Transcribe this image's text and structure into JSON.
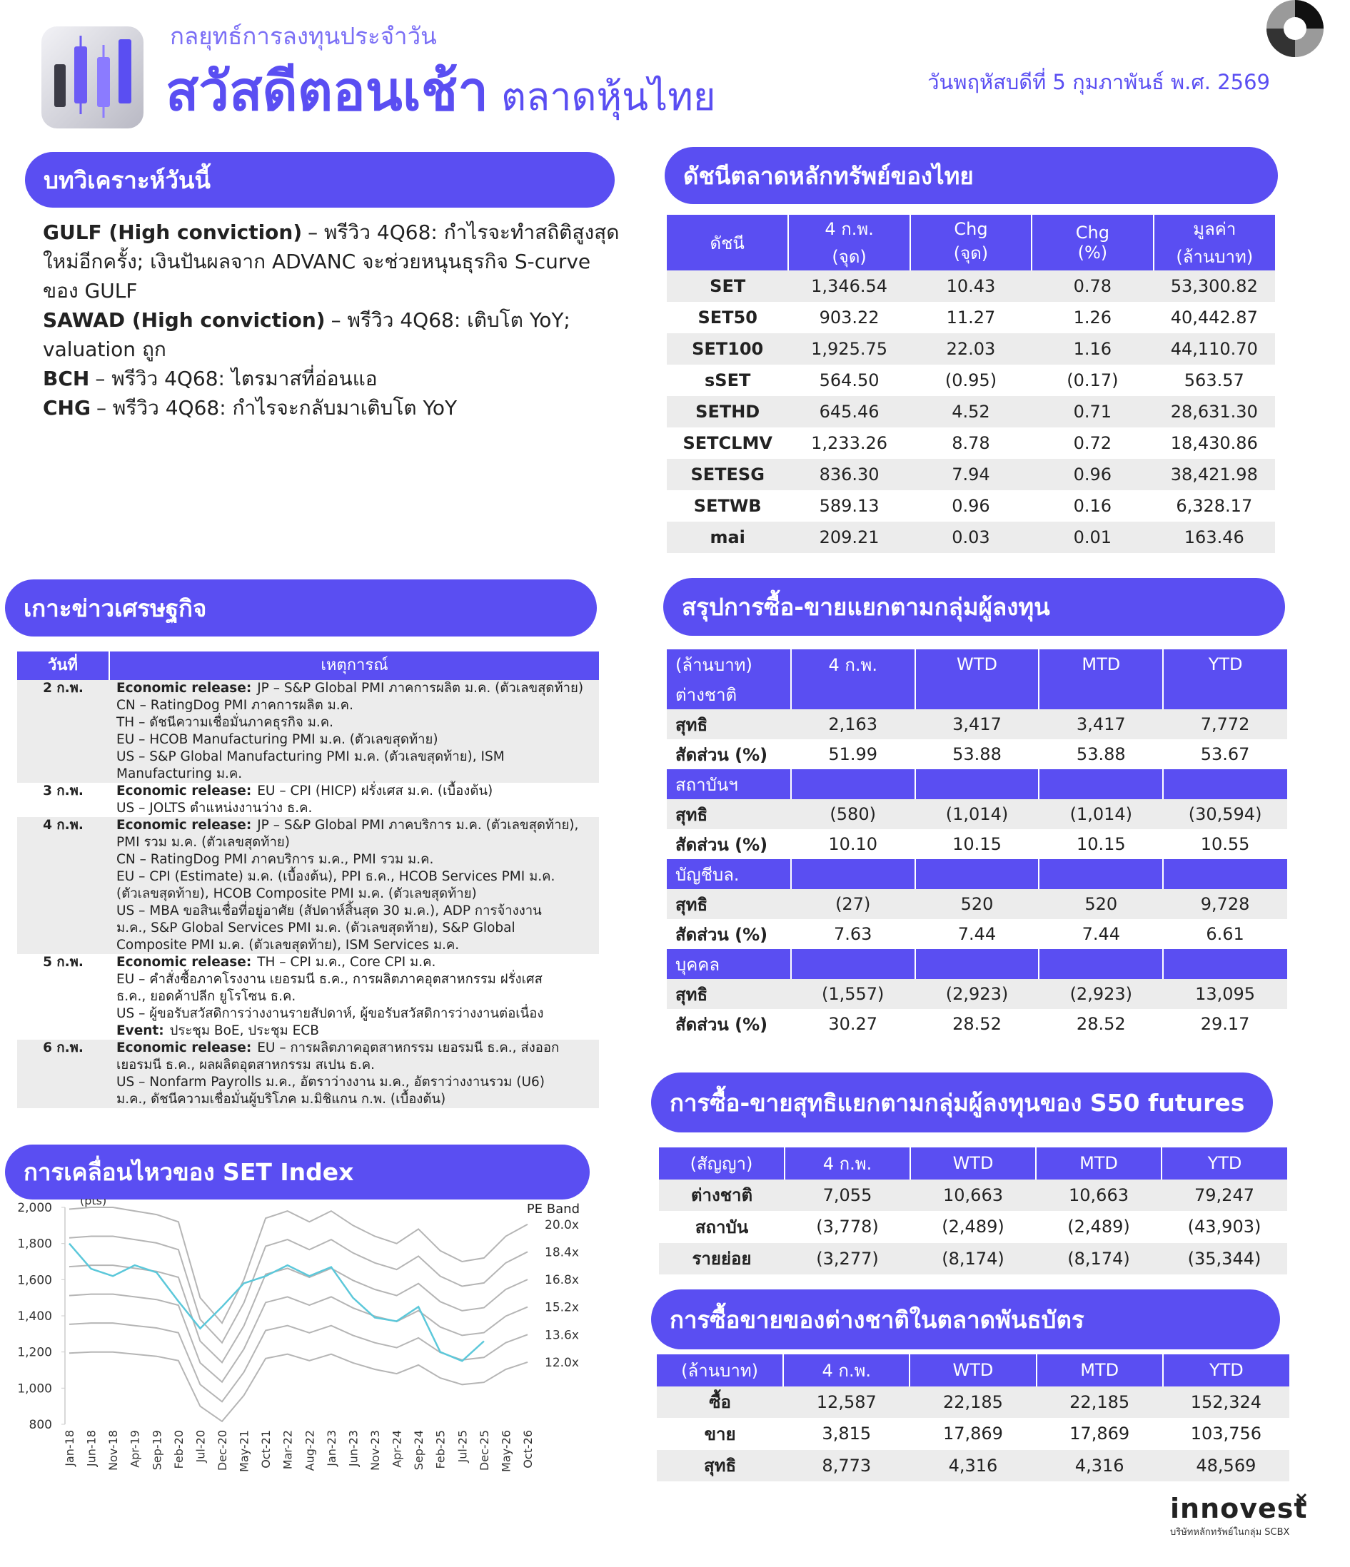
{
  "header": {
    "subtitle": "กลยุทธ์การลงทุนประจำวัน",
    "title": "สวัสดีตอนเช้า",
    "title_suffix": "ตลาดหุ้นไทย",
    "date": "วันพฤหัสบดีที่ 5 กุมภาพันธ์ พ.ศ. 2569"
  },
  "analysis": {
    "title": "บทวิเคราะห์วันนี้",
    "lines": [
      {
        "bold": "GULF (High conviction)",
        "text": "– พรีวิว 4Q68: กำไรจะทำสถิติสูงสุด"
      },
      "ใหม่อีกครั้ง; เงินปันผลจาก ADVANC จะช่วยหนุนธุรกิจ S-curve",
      "ของ GULF",
      {
        "bold": "SAWAD (High conviction)",
        "text": "– พรีวิว 4Q68: เติบโต YoY;"
      },
      "valuation ถูก",
      {
        "bold": "BCH",
        "text": "– พรีวิว 4Q68: ไตรมาสที่อ่อนแอ"
      },
      {
        "bold": "CHG",
        "text": "– พรีวิว 4Q68: กำไรจะกลับมาเติบโต YoY"
      }
    ]
  },
  "index_table": {
    "title": "ดัชนีตลาดหลักทรัพย์ของไทย",
    "header": [
      [
        "ดัชนี"
      ],
      [
        "4 ก.พ.",
        "(จุด)"
      ],
      [
        "Chg",
        "(จุด)"
      ],
      [
        "Chg",
        "(%)"
      ],
      [
        "มูลค่า",
        "(ล้านบาท)"
      ]
    ],
    "rows": [
      [
        "SET",
        "1,346.54",
        "10.43",
        "0.78",
        "53,300.82"
      ],
      [
        "SET50",
        "903.22",
        "11.27",
        "1.26",
        "40,442.87"
      ],
      [
        "SET100",
        "1,925.75",
        "22.03",
        "1.16",
        "44,110.70"
      ],
      [
        "sSET",
        "564.50",
        "(0.95)",
        "(0.17)",
        "563.57"
      ],
      [
        "SETHD",
        "645.46",
        "4.52",
        "0.71",
        "28,631.30"
      ],
      [
        "SETCLMV",
        "1,233.26",
        "8.78",
        "0.72",
        "18,430.86"
      ],
      [
        "SETESG",
        "836.30",
        "7.94",
        "0.96",
        "38,421.98"
      ],
      [
        "SETWB",
        "589.13",
        "0.96",
        "0.16",
        "6,328.17"
      ],
      [
        "mai",
        "209.21",
        "0.03",
        "0.01",
        "163.46"
      ]
    ]
  },
  "news": {
    "title": "เกาะข่าวเศรษฐกิจ",
    "header": [
      "วันที่",
      "เหตุการณ์"
    ],
    "rows": [
      {
        "date": "2 ก.พ.",
        "lines": [
          {
            "bold": "Economic release:",
            "text": "JP – S&P Global PMI ภาคการผลิต ม.ค. (ตัวเลขสุดท้าย)"
          },
          "CN – RatingDog PMI ภาคการผลิต ม.ค.",
          "TH – ดัชนีความเชื่อมั่นภาคธุรกิจ ม.ค.",
          "EU – HCOB Manufacturing PMI ม.ค. (ตัวเลขสุดท้าย)",
          "US – S&P Global Manufacturing PMI ม.ค. (ตัวเลขสุดท้าย), ISM",
          "Manufacturing ม.ค."
        ]
      },
      {
        "date": "3 ก.พ.",
        "lines": [
          {
            "bold": "Economic release:",
            "text": "EU – CPI (HICP) ฝรั่งเศส ม.ค. (เบื้องต้น)"
          },
          "US – JOLTS ตำแหน่งงานว่าง ธ.ค."
        ]
      },
      {
        "date": "4 ก.พ.",
        "lines": [
          {
            "bold": "Economic release:",
            "text": "JP – S&P Global PMI ภาคบริการ ม.ค. (ตัวเลขสุดท้าย),"
          },
          "PMI รวม ม.ค. (ตัวเลขสุดท้าย)",
          "CN – RatingDog PMI ภาคบริการ ม.ค., PMI รวม ม.ค.",
          "EU – CPI (Estimate) ม.ค. (เบื้องต้น), PPI ธ.ค., HCOB Services PMI ม.ค.",
          "(ตัวเลขสุดท้าย), HCOB Composite PMI ม.ค. (ตัวเลขสุดท้าย)",
          "US – MBA ขอสินเชื่อที่อยู่อาศัย (สัปดาห์สิ้นสุด 30 ม.ค.), ADP การจ้างงาน",
          "ม.ค., S&P Global Services PMI ม.ค. (ตัวเลขสุดท้าย), S&P Global",
          "Composite PMI ม.ค. (ตัวเลขสุดท้าย), ISM Services ม.ค."
        ]
      },
      {
        "date": "5 ก.พ.",
        "lines": [
          {
            "bold": "Economic release:",
            "text": "TH – CPI ม.ค., Core CPI ม.ค."
          },
          "EU – คำสั่งซื้อภาคโรงงาน เยอรมนี ธ.ค., การผลิตภาคอุตสาหกรรม ฝรั่งเศส",
          "ธ.ค., ยอดค้าปลีก ยูโรโซน ธ.ค.",
          "US – ผู้ขอรับสวัสดิการว่างงานรายสัปดาห์, ผู้ขอรับสวัสดิการว่างงานต่อเนื่อง",
          {
            "bold": "Event:",
            "text": "ประชุม BoE, ประชุม ECB"
          }
        ]
      },
      {
        "date": "6 ก.พ.",
        "lines": [
          {
            "bold": "Economic release:",
            "text": "EU – การผลิตภาคอุตสาหกรรม เยอรมนี ธ.ค., ส่งออก"
          },
          "เยอรมนี ธ.ค., ผลผลิตอุตสาหกรรม สเปน ธ.ค.",
          "US – Nonfarm Payrolls ม.ค., อัตราว่างงาน ม.ค., อัตราว่างงานรวม (U6)",
          "ม.ค., ดัชนีความเชื่อมั่นผู้บริโภค ม.มิชิแกน ก.พ. (เบื้องต้น)"
        ]
      }
    ]
  },
  "chart_data": {
    "type": "line",
    "title": "การเคลื่อนไหวของ SET Index",
    "y_label": "(pts)",
    "band_label": "PE Band",
    "categories": [
      "Jan-18",
      "Jun-18",
      "Nov-18",
      "Apr-19",
      "Sep-19",
      "Feb-20",
      "Jul-20",
      "Dec-20",
      "May-21",
      "Oct-21",
      "Mar-22",
      "Aug-22",
      "Jan-23",
      "Jun-23",
      "Nov-23",
      "Apr-24",
      "Sep-24",
      "Feb-25",
      "Jul-25",
      "Dec-25",
      "May-26",
      "Oct-26"
    ],
    "ylim": [
      800,
      2000
    ],
    "yticks": [
      800,
      {
        "value": 1000,
        "label": "1,000"
      },
      {
        "value": 1200,
        "label": "1,200"
      },
      {
        "value": 1400,
        "label": "1,400"
      },
      {
        "value": 1600,
        "label": "1,600"
      },
      {
        "value": 1800,
        "label": "1,800"
      },
      {
        "value": 2000,
        "label": "2,000"
      }
    ],
    "series": [
      {
        "name": "20.0x",
        "color": "#b5b5b5",
        "values": [
          1990,
          2000,
          2000,
          1980,
          1960,
          1920,
          1500,
          1360,
          1600,
          1940,
          1980,
          1920,
          1980,
          1900,
          1840,
          1800,
          1880,
          1760,
          1700,
          1720,
          1840,
          1906
        ]
      },
      {
        "name": "18.4x",
        "color": "#b5b5b5",
        "values": [
          1831,
          1840,
          1840,
          1822,
          1803,
          1766,
          1380,
          1251,
          1472,
          1785,
          1822,
          1766,
          1822,
          1748,
          1693,
          1656,
          1730,
          1619,
          1564,
          1582,
          1693,
          1754
        ]
      },
      {
        "name": "16.8x",
        "color": "#b5b5b5",
        "values": [
          1672,
          1680,
          1680,
          1663,
          1646,
          1613,
          1260,
          1142,
          1344,
          1630,
          1663,
          1613,
          1663,
          1596,
          1546,
          1512,
          1579,
          1478,
          1428,
          1445,
          1546,
          1601
        ]
      },
      {
        "name": "15.2x",
        "color": "#b5b5b5",
        "values": [
          1512,
          1520,
          1520,
          1505,
          1490,
          1459,
          1140,
          1034,
          1216,
          1474,
          1505,
          1459,
          1505,
          1444,
          1398,
          1368,
          1429,
          1338,
          1292,
          1307,
          1398,
          1449
        ]
      },
      {
        "name": "13.6x",
        "color": "#b5b5b5",
        "values": [
          1353,
          1360,
          1360,
          1346,
          1333,
          1306,
          1020,
          925,
          1088,
          1319,
          1346,
          1306,
          1346,
          1292,
          1251,
          1224,
          1278,
          1197,
          1156,
          1170,
          1251,
          1296
        ]
      },
      {
        "name": "12.0x",
        "color": "#b5b5b5",
        "values": [
          1194,
          1200,
          1200,
          1188,
          1176,
          1152,
          900,
          816,
          960,
          1164,
          1188,
          1152,
          1188,
          1140,
          1104,
          1080,
          1128,
          1056,
          1020,
          1032,
          1104,
          1144
        ]
      },
      {
        "color": "#5cc8da",
        "values": [
          1800,
          1660,
          1620,
          1680,
          1640,
          1480,
          1330,
          1450,
          1580,
          1620,
          1680,
          1620,
          1670,
          1500,
          1390,
          1370,
          1450,
          1200,
          1150,
          1260,
          null,
          null
        ]
      }
    ]
  },
  "investor_table": {
    "title": "สรุปการซื้อ-ขายแยกตามกลุ่มผู้ลงทุน",
    "header": [
      "(ล้านบาท)",
      "4 ก.พ.",
      "WTD",
      "MTD",
      "YTD"
    ],
    "groups": [
      {
        "name": "ต่างชาติ",
        "rows": [
          [
            "สุทธิ",
            "2,163",
            "3,417",
            "3,417",
            "7,772"
          ],
          [
            "สัดส่วน (%)",
            "51.99",
            "53.88",
            "53.88",
            "53.67"
          ]
        ]
      },
      {
        "name": "สถาบันฯ",
        "rows": [
          [
            "สุทธิ",
            "(580)",
            "(1,014)",
            "(1,014)",
            "(30,594)"
          ],
          [
            "สัดส่วน (%)",
            "10.10",
            "10.15",
            "10.15",
            "10.55"
          ]
        ]
      },
      {
        "name": "บัญชีบล.",
        "rows": [
          [
            "สุทธิ",
            "(27)",
            "520",
            "520",
            "9,728"
          ],
          [
            "สัดส่วน (%)",
            "7.63",
            "7.44",
            "7.44",
            "6.61"
          ]
        ]
      },
      {
        "name": "บุคคล",
        "rows": [
          [
            "สุทธิ",
            "(1,557)",
            "(2,923)",
            "(2,923)",
            "13,095"
          ],
          [
            "สัดส่วน (%)",
            "30.27",
            "28.52",
            "28.52",
            "29.17"
          ]
        ]
      }
    ]
  },
  "futures_table": {
    "title": "การซื้อ-ขายสุทธิแยกตามกลุ่มผู้ลงทุนของ S50 futures",
    "header": [
      "(สัญญา)",
      "4 ก.พ.",
      "WTD",
      "MTD",
      "YTD"
    ],
    "rows": [
      [
        "ต่างชาติ",
        "7,055",
        "10,663",
        "10,663",
        "79,247"
      ],
      [
        "สถาบัน",
        "(3,778)",
        "(2,489)",
        "(2,489)",
        "(43,903)"
      ],
      [
        "รายย่อย",
        "(3,277)",
        "(8,174)",
        "(8,174)",
        "(35,344)"
      ]
    ]
  },
  "bond_table": {
    "title": "การซื้อขายของต่างชาติในตลาดพันธบัตร",
    "header": [
      "(ล้านบาท)",
      "4 ก.พ.",
      "WTD",
      "MTD",
      "YTD"
    ],
    "rows": [
      [
        "ซื้อ",
        "12,587",
        "22,185",
        "22,185",
        "152,324"
      ],
      [
        "ขาย",
        "3,815",
        "17,869",
        "17,869",
        "103,756"
      ],
      [
        "สุทธิ",
        "8,773",
        "4,316",
        "4,316",
        "48,569"
      ]
    ]
  },
  "footer": {
    "logo": "innovest",
    "tagline": "บริษัทหลักทรัพย์ในกลุ่ม SCBX"
  }
}
